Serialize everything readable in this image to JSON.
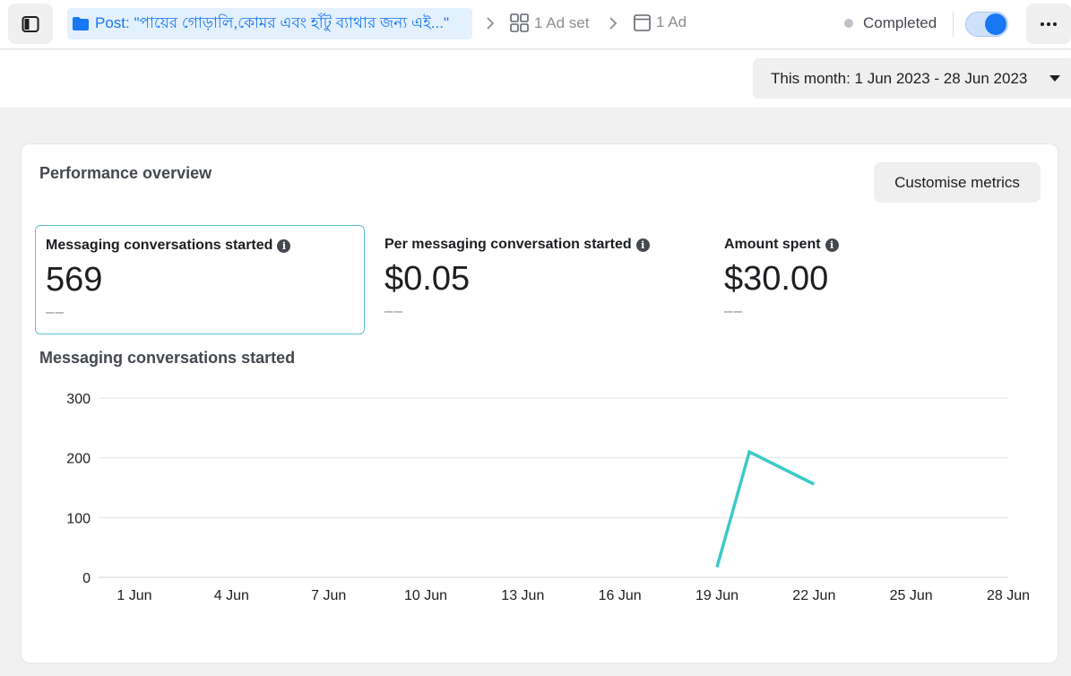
{
  "header": {
    "breadcrumb_post": "Post: \"পায়ের গোড়ালি,কোমর এবং হাঁটু ব্যাথার জন্য এই...\"",
    "breadcrumb_adset": "1 Ad set",
    "breadcrumb_ad": "1 Ad",
    "status": "Completed",
    "toggle_on": true
  },
  "date_range": {
    "label": "This month: 1 Jun 2023 - 28 Jun 2023"
  },
  "overview": {
    "title": "Performance overview",
    "customise_button": "Customise metrics",
    "metrics": [
      {
        "label": "Messaging conversations started",
        "value": "569",
        "delta": "––",
        "selected": true
      },
      {
        "label": "Per messaging conversation started",
        "value": "$0.05",
        "delta": "––",
        "selected": false
      },
      {
        "label": "Amount spent",
        "value": "$30.00",
        "delta": "––",
        "selected": false
      }
    ]
  },
  "colors": {
    "accent": "#1877f2",
    "line": "#3cc8c8"
  },
  "chart_data": {
    "type": "line",
    "title": "Messaging conversations started",
    "x_ticks": [
      "1 Jun",
      "4 Jun",
      "7 Jun",
      "10 Jun",
      "13 Jun",
      "16 Jun",
      "19 Jun",
      "22 Jun",
      "25 Jun",
      "28 Jun"
    ],
    "xlim": [
      "2023-06-01",
      "2023-06-28"
    ],
    "ylim": [
      0,
      300
    ],
    "y_ticks": [
      0,
      100,
      200,
      300
    ],
    "grid": true,
    "series": [
      {
        "points": [
          {
            "x": "2023-06-19",
            "y": 17
          },
          {
            "x": "2023-06-20",
            "y": 210
          },
          {
            "x": "2023-06-22",
            "y": 156
          }
        ]
      }
    ]
  }
}
